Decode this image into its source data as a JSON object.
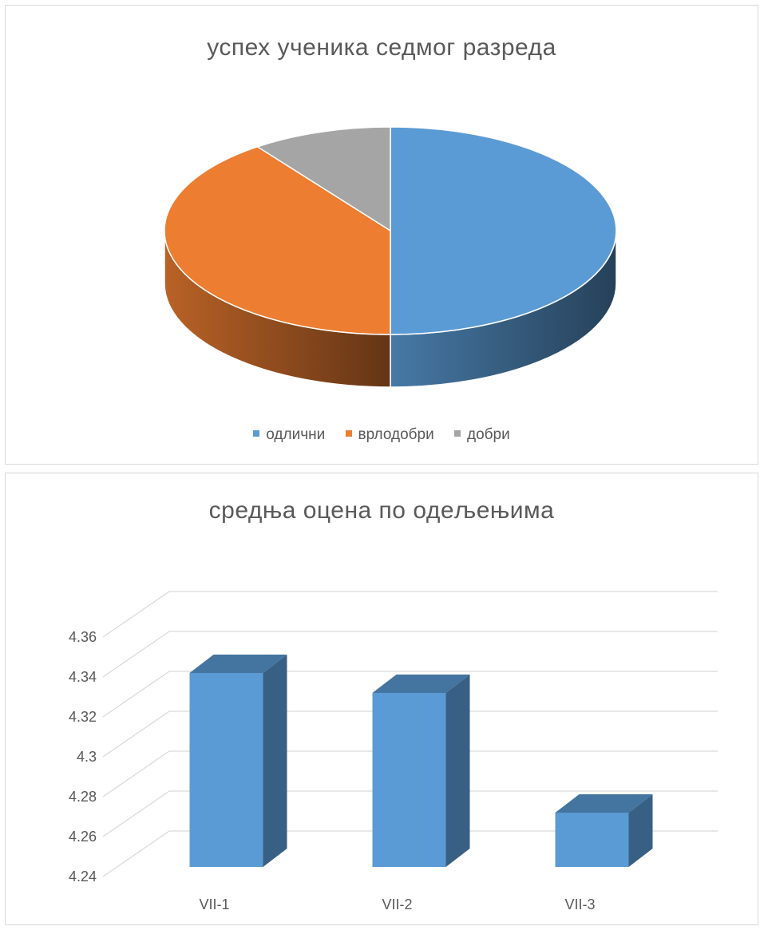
{
  "chart_data": [
    {
      "type": "pie",
      "style": "3d",
      "title": "успех ученика седмог разреда",
      "categories": [
        "одлични",
        "врлодобри",
        "добри"
      ],
      "values": [
        50,
        40,
        10
      ],
      "unit": "percent",
      "colors": [
        "#5b9bd5",
        "#ed7d31",
        "#a5a5a5"
      ],
      "legend": "bottom"
    },
    {
      "type": "bar",
      "style": "3d",
      "title": "средња оцена по одељењима",
      "categories": [
        "VII-1",
        "VII-2",
        "VII-3"
      ],
      "values": [
        4.35,
        4.34,
        4.28
      ],
      "ylim": [
        4.24,
        4.36
      ],
      "yticks": [
        "4.24",
        "4.26",
        "4.28",
        "4.3",
        "4.32",
        "4.34",
        "4.36"
      ],
      "xlabel": "",
      "ylabel": "",
      "grid": true,
      "colors": [
        "#5b9bd5"
      ]
    }
  ]
}
